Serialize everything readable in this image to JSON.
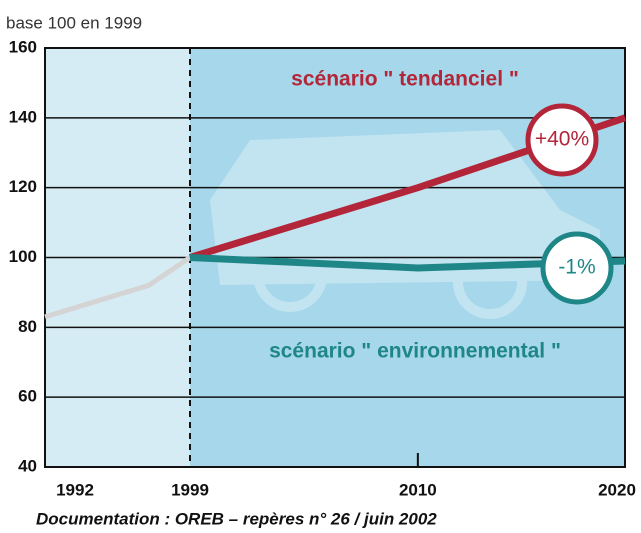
{
  "chart_data": {
    "type": "line",
    "ylabel": "base 100 en 1999",
    "source": "Documentation : OREB – repères n° 26 / juin 2002",
    "x": [
      1992,
      1997,
      1999,
      2010,
      2020
    ],
    "series": [
      {
        "color": "#d4d4d4",
        "values": [
          83,
          92,
          100,
          null,
          null
        ]
      },
      {
        "name": "scénario \" tendanciel \"",
        "color": "#b3263a",
        "values": [
          null,
          null,
          100,
          120,
          140
        ]
      },
      {
        "name": "scénario \" environnemental \"",
        "color": "#1f8688",
        "values": [
          null,
          null,
          100,
          97,
          99
        ]
      }
    ],
    "annotations": [
      "+40%",
      "-1%"
    ],
    "xlim": [
      1992,
      2020
    ],
    "xticks": [
      1992,
      1999,
      2010,
      2020
    ],
    "ylim": [
      40,
      160
    ],
    "yticks": [
      40,
      60,
      80,
      100,
      120,
      140,
      160
    ],
    "grid": true
  }
}
